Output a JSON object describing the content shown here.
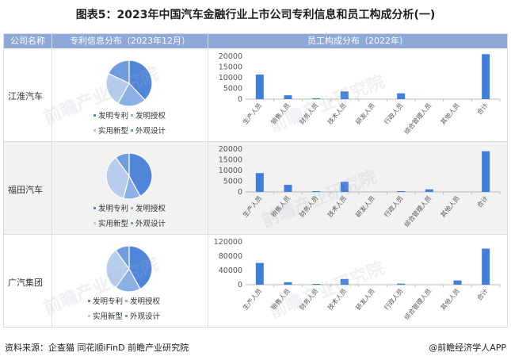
{
  "title": "图表5：2023年中国汽车金融行业上市公司专利信息和员工构成分析(一)",
  "headers": {
    "company": "公司名称",
    "patent": "专利信息分布（2023年12月）",
    "staff": "员工构成分布（2022年）"
  },
  "legend": [
    "发明专利",
    "发明授权",
    "实用新型",
    "外观设计"
  ],
  "colors": {
    "header": "#8ea9d8",
    "pie": [
      "#4f86d9",
      "#8ab0e6",
      "#b6cdee",
      "#6f9cdf"
    ],
    "bar": "#3f7fdc",
    "axis_text": "#555555"
  },
  "watermark": "前瞻产业研究院",
  "footer": {
    "source": "资料来源：企查猫 同花顺iFinD 前瞻产业研究院",
    "brand": "@前瞻经济学人APP"
  },
  "chart_data": [
    {
      "company": "江淮汽车",
      "pie": {
        "type": "pie",
        "labels": [
          "发明专利",
          "发明授权",
          "实用新型",
          "外观设计"
        ],
        "values": [
          38,
          20,
          24,
          18
        ]
      },
      "bars": {
        "type": "bar",
        "categories": [
          "生产人员",
          "销售人员",
          "财务人员",
          "技术人员",
          "研发人员",
          "行政人员",
          "综合管理人员",
          "其他人员",
          "合计"
        ],
        "values": [
          11500,
          1800,
          400,
          3600,
          0,
          2700,
          0,
          0,
          21000
        ],
        "yticks": [
          0,
          5000,
          10000,
          15000,
          20000
        ],
        "ylim": [
          0,
          20000
        ]
      }
    },
    {
      "company": "福田汽车",
      "pie": {
        "type": "pie",
        "labels": [
          "发明专利",
          "发明授权",
          "实用新型",
          "外观设计"
        ],
        "values": [
          42,
          12,
          36,
          10
        ]
      },
      "bars": {
        "type": "bar",
        "categories": [
          "生产人员",
          "销售人员",
          "财务人员",
          "技术人员",
          "研发人员",
          "行政人员",
          "综合管理人员",
          "其他人员",
          "合计"
        ],
        "values": [
          8800,
          3300,
          300,
          4700,
          0,
          300,
          1200,
          0,
          19000
        ],
        "yticks": [
          0,
          5000,
          10000,
          15000,
          20000
        ],
        "ylim": [
          0,
          20000
        ]
      }
    },
    {
      "company": "广汽集团",
      "pie": {
        "type": "pie",
        "labels": [
          "发明专利",
          "发明授权",
          "实用新型",
          "外观设计"
        ],
        "values": [
          42,
          18,
          30,
          10
        ]
      },
      "bars": {
        "type": "bar",
        "categories": [
          "生产人员",
          "销售人员",
          "财务人员",
          "技术人员",
          "研发人员",
          "行政人员",
          "综合管理人员",
          "其他人员",
          "合计"
        ],
        "values": [
          61000,
          7000,
          1500,
          16000,
          0,
          3000,
          0,
          12000,
          101000
        ],
        "yticks": [
          0,
          40000,
          80000,
          120000
        ],
        "ylim": [
          0,
          120000
        ]
      }
    }
  ]
}
